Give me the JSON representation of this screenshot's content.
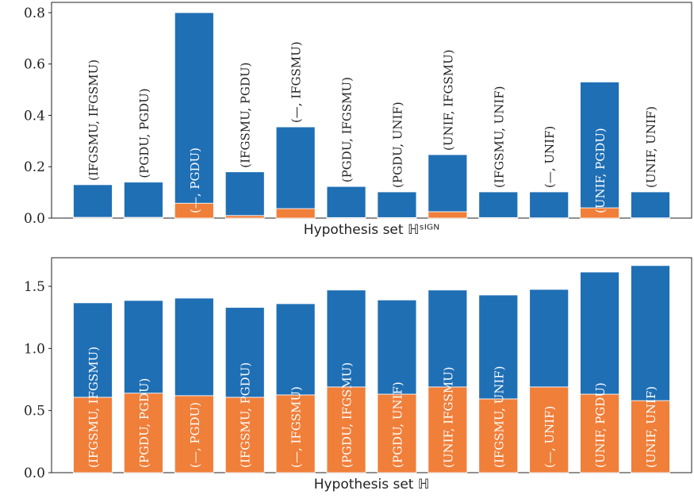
{
  "chart_data": [
    {
      "type": "stacked_bar",
      "xlabel": "Hypothesis set ℍˢᴵᴳᴺ",
      "categories": [
        "(IFGSMU, IFGSMU)",
        "(PGDU, PGDU)",
        "(—, PGDU)",
        "(IFGSMU, PGDU)",
        "(—, IFGSMU)",
        "(PGDU, IFGSMU)",
        "(PGDU, UNIF)",
        "(UNIF, IFGSMU)",
        "(IFGSMU, UNIF)",
        "(—, UNIF)",
        "(UNIF, PGDU)",
        "(UNIF, UNIF)"
      ],
      "series": [
        {
          "color": "#f07f3a",
          "values": [
            0.003,
            0.003,
            0.058,
            0.01,
            0.037,
            0.002,
            0.002,
            0.025,
            0.002,
            0.001,
            0.04,
            0.001
          ]
        },
        {
          "color": "#1f6fb5",
          "values": [
            0.127,
            0.137,
            0.742,
            0.17,
            0.318,
            0.121,
            0.1,
            0.222,
            0.1,
            0.101,
            0.49,
            0.101
          ]
        }
      ],
      "ylim": [
        0,
        0.84
      ],
      "yticks": [
        {
          "value": 0,
          "label": "0.0"
        },
        0.2,
        0.4,
        0.6,
        0.8
      ]
    },
    {
      "type": "stacked_bar",
      "xlabel": "Hypothesis set ℍ",
      "categories": [
        "(IFGSMU, IFGSMU)",
        "(PGDU, PGDU)",
        "(—, PGDU)",
        "(IFGSMU, PGDU)",
        "(—, IFGSMU)",
        "(PGDU, IFGSMU)",
        "(PGDU, UNIF)",
        "(UNIF, IFGSMU)",
        "(IFGSMU, UNIF)",
        "(—, UNIF)",
        "(UNIF, PGDU)",
        "(UNIF, UNIF)"
      ],
      "series": [
        {
          "color": "#f07f3a",
          "values": [
            0.607,
            0.64,
            0.62,
            0.607,
            0.626,
            0.69,
            0.632,
            0.69,
            0.594,
            0.69,
            0.632,
            0.58
          ]
        },
        {
          "color": "#1f6fb5",
          "values": [
            0.76,
            0.746,
            0.785,
            0.723,
            0.734,
            0.78,
            0.758,
            0.78,
            0.836,
            0.785,
            0.983,
            1.087
          ]
        }
      ],
      "ylim": [
        0,
        1.73
      ],
      "yticks": [
        {
          "value": 0,
          "label": "0.0"
        },
        0.5,
        {
          "value": 1,
          "label": "1.0"
        },
        1.5
      ]
    }
  ]
}
